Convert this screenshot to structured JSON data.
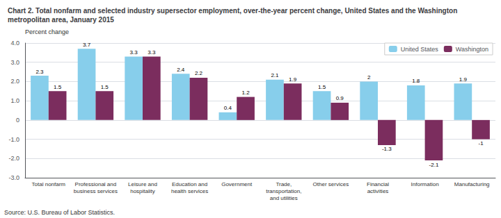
{
  "chart_data": {
    "type": "bar",
    "title": "Chart 2. Total nonfarm and selected industry supersector employment, over-the-year percent change, United States and the Washington metropolitan area, January 2015",
    "ylabel": "Percent change",
    "source": "Source: U.S. Bureau of Labor Statistics.",
    "categories": [
      "Total nonfarm",
      "Professional and\nbusiness services",
      "Leisure and\nhospitality",
      "Education and\nhealth services",
      "Government",
      "Trade,\ntransportation,\nand utilities",
      "Other services",
      "Financial\nactivities",
      "Information",
      "Manufacturing"
    ],
    "series": [
      {
        "name": "United States",
        "color": "#87CEEB",
        "values": [
          2.3,
          3.7,
          3.3,
          2.4,
          0.4,
          2.1,
          1.5,
          2.0,
          1.8,
          1.9
        ]
      },
      {
        "name": "Washington",
        "color": "#7B2D5E",
        "values": [
          1.5,
          1.5,
          3.3,
          2.2,
          1.2,
          1.9,
          0.9,
          -1.3,
          -2.1,
          -1.0
        ]
      }
    ],
    "ylim": [
      -3.0,
      4.0
    ],
    "yticks": [
      {
        "value": -3.0,
        "label": "-3.0"
      },
      {
        "value": -2.0,
        "label": "-2.0"
      },
      {
        "value": -1.0,
        "label": "-1.0"
      },
      0,
      {
        "value": 1.0,
        "label": "1.0"
      },
      {
        "value": 2.0,
        "label": "2.0"
      },
      {
        "value": 3.0,
        "label": "3.0"
      },
      {
        "value": 4.0,
        "label": "4.0"
      }
    ],
    "grid": true,
    "legend": "upper right",
    "data_labels": true
  }
}
